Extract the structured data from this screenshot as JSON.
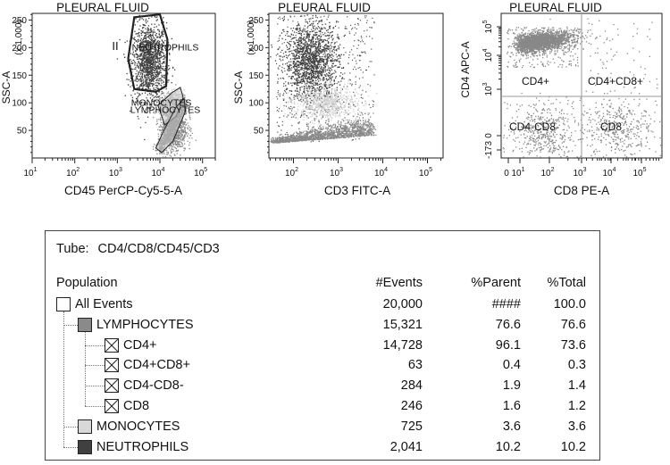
{
  "chart_data": [
    {
      "type": "scatter",
      "title": "PLEURAL FLUID",
      "xlabel": "CD45 PerCP-Cy5-5-A",
      "ylabel": "SSC-A",
      "yunit": "(x 1,000)",
      "xscale": "log",
      "xlim": [
        1,
        100000
      ],
      "xticks": [
        "10^1",
        "10^2",
        "10^3",
        "10^4",
        "10^5"
      ],
      "ylim": [
        0,
        262
      ],
      "yticks": [
        50,
        100,
        150,
        200,
        250
      ],
      "gates": [
        {
          "name": "NEUTROPHILS",
          "marker": "II",
          "polygon": [
            [
              2500,
              255
            ],
            [
              10000,
              260
            ],
            [
              15000,
              215
            ],
            [
              14000,
              130
            ],
            [
              8000,
              120
            ],
            [
              2500,
              125
            ],
            [
              1800,
              180
            ]
          ]
        },
        {
          "name": "MONOCYTES",
          "polygon": [
            [
              9000,
              95
            ],
            [
              19000,
              118
            ],
            [
              30000,
              128
            ],
            [
              35000,
              110
            ],
            [
              24000,
              75
            ],
            [
              13000,
              60
            ]
          ]
        },
        {
          "name": "LYMPHOCYTES",
          "polygon": [
            [
              8000,
              18
            ],
            [
              12000,
              48
            ],
            [
              24000,
              92
            ],
            [
              37000,
              108
            ],
            [
              40000,
              85
            ],
            [
              20000,
              30
            ],
            [
              11000,
              10
            ]
          ]
        }
      ],
      "clusters": [
        {
          "population": "NEUTROPHILS",
          "color": "#404040",
          "points": 2041,
          "center": [
            5500,
            175
          ],
          "spread": [
            0.2,
            35
          ]
        },
        {
          "population": "MONOCYTES",
          "color": "#b8b8b8",
          "points": 725,
          "center": [
            18000,
            100
          ],
          "spread": [
            0.15,
            12
          ]
        },
        {
          "population": "LYMPHOCYTES",
          "color": "#8a8a8a",
          "points": 15321,
          "center": [
            20000,
            55
          ],
          "spread": [
            0.16,
            22
          ]
        }
      ]
    },
    {
      "type": "scatter",
      "title": "PLEURAL FLUID",
      "xlabel": "CD3 FITC-A",
      "ylabel": "SSC-A",
      "yunit": "(x 1,000)",
      "xscale": "log",
      "xlim": [
        10,
        200000
      ],
      "xticks": [
        "10^2",
        "10^3",
        "10^4",
        "10^5"
      ],
      "ylim": [
        0,
        262
      ],
      "yticks": [
        50,
        100,
        150,
        200,
        250
      ],
      "clusters": [
        {
          "population": "NEUTROPHILS",
          "color": "#404040",
          "points": 2041,
          "center": [
            250,
            175
          ],
          "spread": [
            0.3,
            35
          ]
        },
        {
          "population": "MONOCYTES",
          "color": "#d0d0d0",
          "points": 725,
          "center": [
            500,
            100
          ],
          "spread": [
            0.35,
            15
          ]
        },
        {
          "population": "LYMPHOCYTES",
          "color": "#8a8a8a",
          "points": 15321,
          "center": [
            1500,
            40
          ],
          "spread": [
            0.45,
            10
          ]
        }
      ]
    },
    {
      "type": "scatter",
      "title": "PLEURAL FLUID",
      "xlabel": "CD8 PE-A",
      "ylabel": "CD4 APC-A",
      "xscale": "biexponential",
      "yscale": "biexponential",
      "xticks": [
        "0",
        "10^1",
        "10^2",
        "10^3",
        "10^4",
        "10^5"
      ],
      "yticks": [
        "-173",
        "0",
        "10^3",
        "10^4",
        "10^5"
      ],
      "quadrants": [
        "CD4+",
        "CD4+CD8+",
        "CD4-CD8-",
        "CD8"
      ],
      "gate_x": "10^3",
      "gate_y": "10^3",
      "clusters": [
        {
          "population": "CD4+",
          "color": "#888888",
          "points": 14728
        },
        {
          "population": "CD4+CD8+",
          "color": "#888888",
          "points": 63
        },
        {
          "population": "CD4-CD8-",
          "color": "#888888",
          "points": 284
        },
        {
          "population": "CD8",
          "color": "#888888",
          "points": 246
        }
      ]
    }
  ],
  "stats": {
    "tube_label": "Tube:",
    "tube_value": "CD4/CD8/CD45/CD3",
    "headers": {
      "population": "Population",
      "events": "#Events",
      "parent": "%Parent",
      "total": "%Total"
    },
    "rows": [
      {
        "name": "All Events",
        "events": "20,000",
        "parent": "####",
        "total": "100.0",
        "level": 0,
        "swatch": "white"
      },
      {
        "name": "LYMPHOCYTES",
        "events": "15,321",
        "parent": "76.6",
        "total": "76.6",
        "level": 1,
        "swatch": "#8a8a8a"
      },
      {
        "name": "CD4+",
        "events": "14,728",
        "parent": "96.1",
        "total": "73.6",
        "level": 2,
        "swatch": "x"
      },
      {
        "name": "CD4+CD8+",
        "events": "63",
        "parent": "0.4",
        "total": "0.3",
        "level": 2,
        "swatch": "x"
      },
      {
        "name": "CD4-CD8-",
        "events": "284",
        "parent": "1.9",
        "total": "1.4",
        "level": 2,
        "swatch": "x"
      },
      {
        "name": "CD8",
        "events": "246",
        "parent": "1.6",
        "total": "1.2",
        "level": 2,
        "swatch": "x"
      },
      {
        "name": "MONOCYTES",
        "events": "725",
        "parent": "3.6",
        "total": "3.6",
        "level": 1,
        "swatch": "#d9d9d9"
      },
      {
        "name": "NEUTROPHILS",
        "events": "2,041",
        "parent": "10.2",
        "total": "10.2",
        "level": 1,
        "swatch": "#404040"
      }
    ]
  }
}
